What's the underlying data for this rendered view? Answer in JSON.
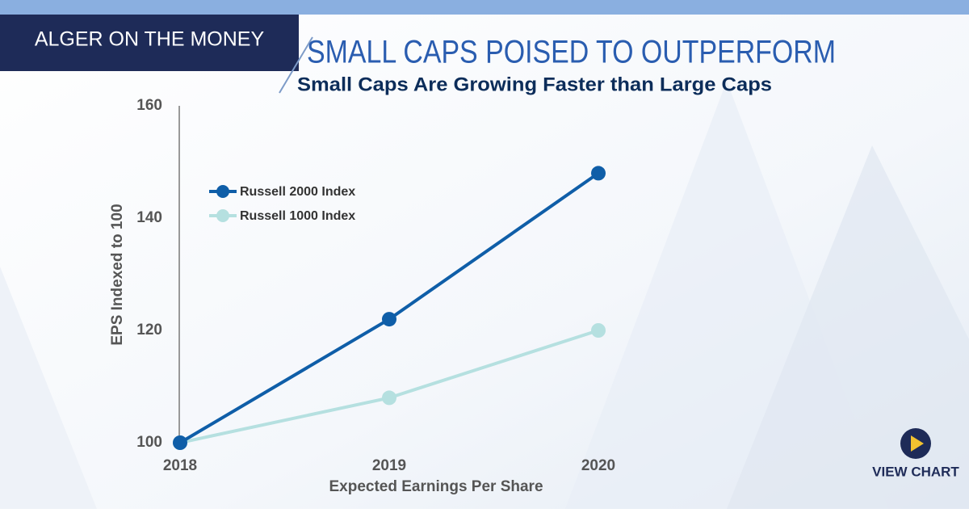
{
  "header": {
    "brand": "ALGER ON THE MONEY"
  },
  "button": {
    "label": "VIEW CHART"
  },
  "chart_data": {
    "type": "line",
    "title": "SMALL CAPS POISED TO OUTPERFORM",
    "subtitle": "Small Caps Are Growing Faster than Large Caps",
    "y_label": "EPS Indexed to 100",
    "x_label": "Expected Earnings Per Share",
    "categories": [
      "2018",
      "2019",
      "2020"
    ],
    "series": [
      {
        "name": "Russell 2000 Index",
        "color": "#0f5ea8",
        "values": [
          100,
          122,
          148
        ]
      },
      {
        "name": "Russell 1000 Index",
        "color": "#b5e0e0",
        "values": [
          100,
          108,
          120
        ]
      }
    ],
    "ylim": [
      100,
      160
    ],
    "yticks": [
      100,
      120,
      140,
      160
    ],
    "grid": false,
    "legend": "upper-left"
  }
}
